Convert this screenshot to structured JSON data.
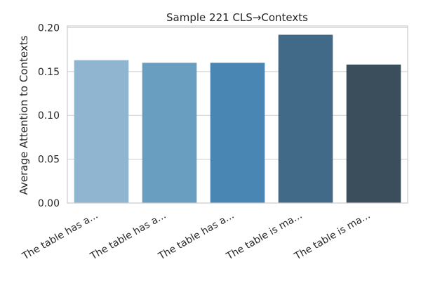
{
  "chart_data": {
    "type": "bar",
    "title": "Sample 221 CLS→Contexts",
    "xlabel": "",
    "ylabel": "Average Attention to Contexts",
    "categories": [
      "The table has a...",
      "The table has a...",
      "The table has a...",
      "The table is ma...",
      "The table is ma..."
    ],
    "values": [
      0.163,
      0.16,
      0.16,
      0.192,
      0.158
    ],
    "ylim": [
      0,
      0.202
    ],
    "yticks": [
      "0.00",
      "0.05",
      "0.10",
      "0.15",
      "0.20"
    ],
    "ytick_values": [
      0,
      0.05,
      0.1,
      0.15,
      0.2
    ],
    "grid": true,
    "colors": [
      "#8fb5d0",
      "#6a9ec0",
      "#4a86b4",
      "#416a88",
      "#3b4e5c"
    ]
  }
}
